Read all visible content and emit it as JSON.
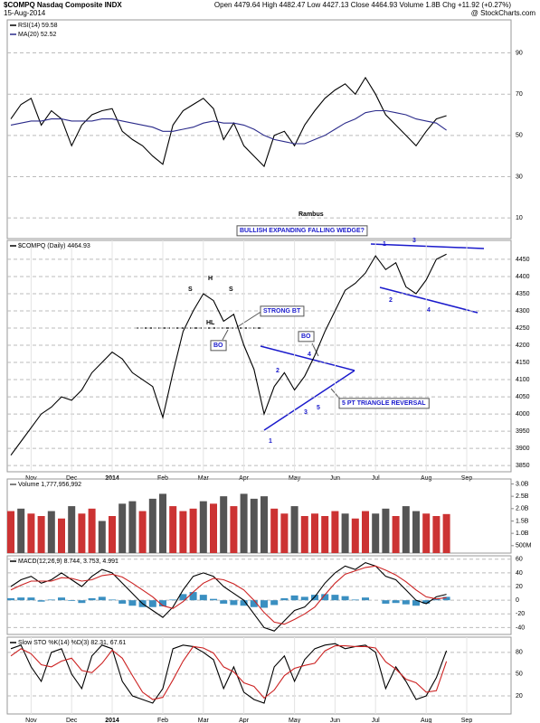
{
  "header": {
    "title": "$COMPQ Nasdaq Composite INDX",
    "date": "15-Aug-2014",
    "quote": "Open 4479.64 High 4482.47 Low 4427.13 Close 4464.93 Volume 1.8B Chg +11.92 (+0.27%)",
    "source": "@ StockCharts.com"
  },
  "chart_data": [
    {
      "type": "line",
      "ylim": [
        0,
        106
      ],
      "yticks": [
        90,
        70,
        50,
        30,
        10
      ],
      "grid": true,
      "series": [
        {
          "name": "RSI(14) 59.58",
          "color": "#000000",
          "style": "line",
          "values": [
            58,
            65,
            68,
            55,
            62,
            58,
            45,
            55,
            60,
            62,
            63,
            52,
            48,
            45,
            40,
            36,
            55,
            62,
            65,
            68,
            63,
            48,
            56,
            45,
            40,
            35,
            50,
            52,
            45,
            55,
            62,
            68,
            72,
            75,
            70,
            78,
            70,
            60,
            55,
            50,
            45,
            52,
            58,
            59.58,
            null,
            null,
            null
          ]
        },
        {
          "name": "MA(20) 52.52",
          "color": "#2a2a8a",
          "style": "line",
          "values": [
            55,
            56,
            57,
            57,
            58,
            58,
            57,
            57,
            57,
            58,
            58,
            57,
            56,
            55,
            54,
            52,
            52,
            53,
            54,
            56,
            57,
            56,
            56,
            55,
            53,
            50,
            48,
            47,
            46,
            46,
            48,
            50,
            53,
            56,
            58,
            61,
            62,
            62,
            61,
            60,
            58,
            57,
            56,
            52.52,
            null,
            null,
            null
          ]
        }
      ]
    },
    {
      "type": "line",
      "ylim": [
        3832,
        4505
      ],
      "yticks": [
        3850,
        3900,
        3950,
        4000,
        4050,
        4100,
        4150,
        4200,
        4250,
        4300,
        4350,
        4400,
        4450
      ],
      "grid": true,
      "categories": [
        null,
        null,
        "Nov",
        null,
        null,
        null,
        "Dec",
        null,
        null,
        null,
        "2014",
        null,
        null,
        null,
        null,
        "Feb",
        null,
        null,
        null,
        "Mar",
        null,
        null,
        null,
        "Apr",
        null,
        null,
        null,
        null,
        "May",
        null,
        null,
        null,
        "Jun",
        null,
        null,
        null,
        "Jul",
        null,
        null,
        null,
        null,
        "Aug",
        null,
        null,
        null,
        "Sep",
        null
      ],
      "series": [
        {
          "name": "$COMPQ (Daily) 4464.93",
          "color": "#000000",
          "style": "line",
          "values": [
            3880,
            3920,
            3960,
            4000,
            4020,
            4050,
            4040,
            4070,
            4120,
            4150,
            4180,
            4160,
            4120,
            4100,
            4080,
            3990,
            4120,
            4240,
            4300,
            4350,
            4330,
            4270,
            4290,
            4200,
            4130,
            4000,
            4080,
            4120,
            4070,
            4110,
            4170,
            4240,
            4300,
            4360,
            4380,
            4410,
            4460,
            4420,
            4440,
            4370,
            4350,
            4390,
            4450,
            4464.93,
            null,
            null,
            null
          ]
        }
      ],
      "annotations": [
        "Rambus",
        "BULLISH EXPANDING FALLING WEDGE?",
        "STRONG BT",
        "BO",
        "BO",
        "5 PT TRIANGLE REVERSAL",
        "H",
        "S",
        "S",
        "HL",
        "1",
        "2",
        "3",
        "4",
        "5",
        "1",
        "3",
        "2",
        "4"
      ]
    },
    {
      "type": "bar",
      "ylim": [
        0.2,
        3.2
      ],
      "yticks": [
        {
          "value": 3,
          "label": "3.0B"
        },
        {
          "value": 2.5,
          "label": "2.5B"
        },
        {
          "value": 2,
          "label": "2.0B"
        },
        {
          "value": 1.5,
          "label": "1.5B"
        },
        {
          "value": 1,
          "label": "1.0B"
        },
        {
          "value": 0.5,
          "label": "500M"
        }
      ],
      "grid": false,
      "series": [
        {
          "name": "Volume 1,777,956,992",
          "color": "#555555",
          "style": "bar",
          "values": [
            1.9,
            2.0,
            1.8,
            1.7,
            1.9,
            1.6,
            2.1,
            1.8,
            2.0,
            1.5,
            1.7,
            2.2,
            2.3,
            1.9,
            2.4,
            2.6,
            2.1,
            1.9,
            2.0,
            2.3,
            2.2,
            2.5,
            2.1,
            2.6,
            2.4,
            2.5,
            2.0,
            1.8,
            2.1,
            1.7,
            1.8,
            1.7,
            1.9,
            1.8,
            1.6,
            1.9,
            1.8,
            2.0,
            1.7,
            2.1,
            1.9,
            1.8,
            1.7,
            1.78,
            null,
            null,
            null
          ],
          "colors": [
            "#cc3333",
            "#555555",
            "#cc3333",
            "#cc3333",
            "#555555",
            "#cc3333",
            "#555555",
            "#cc3333",
            "#cc3333",
            "#555555",
            "#cc3333",
            "#555555",
            "#555555",
            "#cc3333",
            "#555555",
            "#555555",
            "#cc3333",
            "#cc3333",
            "#cc3333",
            "#555555",
            "#cc3333",
            "#555555",
            "#cc3333",
            "#555555",
            "#555555",
            "#555555",
            "#cc3333",
            "#cc3333",
            "#555555",
            "#cc3333",
            "#cc3333",
            "#cc3333",
            "#cc3333",
            "#555555",
            "#cc3333",
            "#cc3333",
            "#555555",
            "#555555",
            "#cc3333",
            "#555555",
            "#555555",
            "#cc3333",
            "#cc3333",
            "#cc3333",
            "#555555",
            "#555555",
            "#555555"
          ]
        }
      ]
    },
    {
      "type": "line",
      "ylim": [
        -50,
        65
      ],
      "yticks": [
        60,
        40,
        20,
        0,
        -20,
        -40
      ],
      "grid": true,
      "legend": "MACD(12,26,9) 8.744, 3.753, 4.991",
      "series": [
        {
          "color": "#3a8fc1",
          "style": "bar",
          "values": [
            3,
            4,
            4,
            -2,
            1,
            4,
            -1,
            -4,
            3,
            5,
            1,
            -5,
            -8,
            -10,
            -10,
            -9,
            1,
            9,
            12,
            8,
            2,
            -5,
            -7,
            -8,
            -10,
            -11,
            -7,
            3,
            7,
            5,
            8,
            9,
            8,
            6,
            1,
            4,
            0,
            -5,
            -4,
            -6,
            -8,
            -5,
            2,
            4.991,
            null,
            null,
            null
          ]
        },
        {
          "color": "#000000",
          "style": "line",
          "values": [
            20,
            30,
            35,
            25,
            30,
            40,
            30,
            20,
            35,
            45,
            40,
            25,
            10,
            -5,
            -15,
            -25,
            -10,
            15,
            35,
            40,
            35,
            20,
            10,
            0,
            -20,
            -40,
            -45,
            -30,
            -15,
            -10,
            5,
            25,
            40,
            50,
            45,
            55,
            50,
            35,
            30,
            15,
            0,
            -5,
            5,
            8.744,
            null,
            null,
            null
          ]
        },
        {
          "color": "#cc2222",
          "style": "line",
          "values": [
            15,
            22,
            28,
            28,
            28,
            33,
            32,
            28,
            30,
            36,
            38,
            34,
            25,
            15,
            5,
            -8,
            -12,
            -2,
            12,
            25,
            32,
            30,
            24,
            15,
            0,
            -18,
            -32,
            -35,
            -28,
            -20,
            -10,
            8,
            25,
            38,
            43,
            48,
            50,
            44,
            37,
            27,
            15,
            5,
            2,
            3.753,
            null,
            null,
            null
          ]
        }
      ]
    },
    {
      "type": "line",
      "ylim": [
        -5,
        101
      ],
      "yticks": [
        80,
        50,
        20
      ],
      "grid": true,
      "legend": "Slow STO %K(14) %D(3) 82.31, 67.61",
      "categories": [
        null,
        null,
        "Nov",
        null,
        null,
        null,
        "Dec",
        null,
        null,
        null,
        "2014",
        null,
        null,
        null,
        null,
        "Feb",
        null,
        null,
        null,
        "Mar",
        null,
        null,
        null,
        "Apr",
        null,
        null,
        null,
        null,
        "May",
        null,
        null,
        null,
        "Jun",
        null,
        null,
        null,
        "Jul",
        null,
        null,
        null,
        null,
        "Aug",
        null,
        null,
        null,
        "Sep",
        null
      ],
      "series": [
        {
          "color": "#000000",
          "style": "line",
          "values": [
            85,
            90,
            60,
            40,
            80,
            85,
            50,
            30,
            75,
            90,
            85,
            40,
            20,
            15,
            10,
            30,
            85,
            90,
            88,
            80,
            70,
            30,
            60,
            25,
            15,
            10,
            60,
            75,
            40,
            70,
            85,
            90,
            92,
            85,
            88,
            90,
            80,
            30,
            60,
            40,
            15,
            20,
            45,
            82.31,
            null,
            null,
            null
          ]
        },
        {
          "color": "#cc2222",
          "style": "line",
          "values": [
            75,
            85,
            78,
            63,
            60,
            68,
            72,
            55,
            52,
            65,
            83,
            72,
            48,
            25,
            15,
            18,
            42,
            68,
            88,
            86,
            79,
            60,
            53,
            38,
            33,
            17,
            28,
            48,
            58,
            62,
            65,
            82,
            89,
            89,
            88,
            88,
            86,
            67,
            57,
            43,
            38,
            25,
            27,
            67.61,
            null,
            null,
            null
          ]
        }
      ]
    }
  ]
}
